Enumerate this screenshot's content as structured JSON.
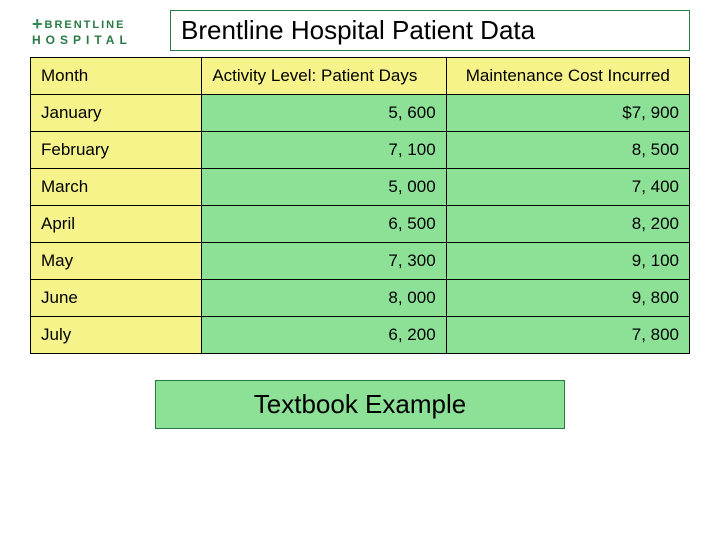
{
  "brand": {
    "name": "BRENTLINE",
    "sub": "HOSPITAL"
  },
  "title": "Brentline Hospital Patient Data",
  "colors": {
    "header_bg": "#f5f38a",
    "cell_bg": "#8ce196",
    "border": "#000000",
    "brand_green": "#2a7a44"
  },
  "table": {
    "columns": [
      "Month",
      "Activity Level: Patient Days",
      "Maintenance Cost Incurred"
    ],
    "rows": [
      {
        "month": "January",
        "days": "5, 600",
        "cost": "$7, 900"
      },
      {
        "month": "February",
        "days": "7, 100",
        "cost": "8, 500"
      },
      {
        "month": "March",
        "days": "5, 000",
        "cost": "7, 400"
      },
      {
        "month": "April",
        "days": "6, 500",
        "cost": "8, 200"
      },
      {
        "month": "May",
        "days": "7, 300",
        "cost": "9, 100"
      },
      {
        "month": "June",
        "days": "8, 000",
        "cost": "9, 800"
      },
      {
        "month": "July",
        "days": "6, 200",
        "cost": "7, 800"
      }
    ]
  },
  "footer": "Textbook Example"
}
